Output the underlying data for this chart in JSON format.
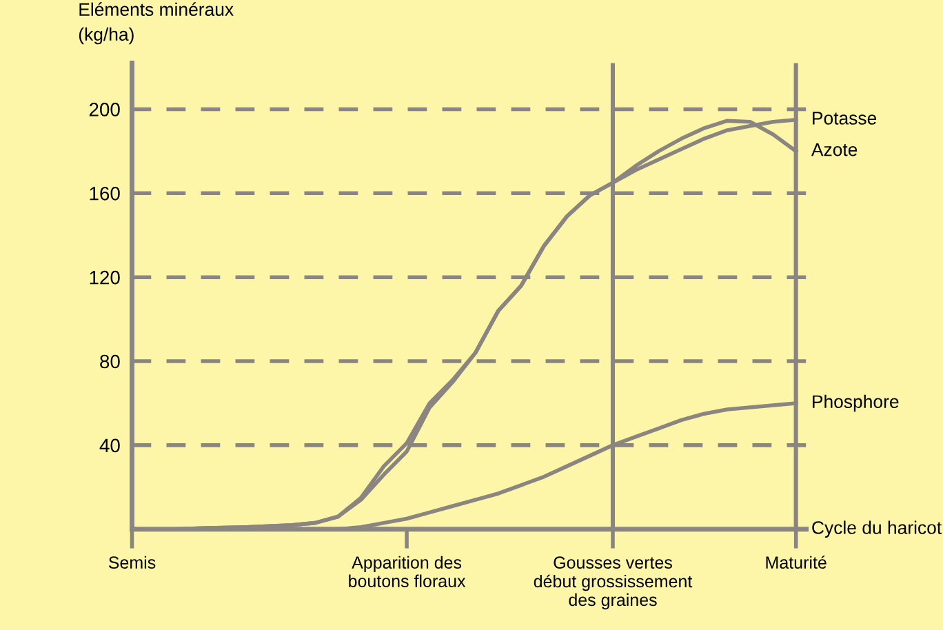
{
  "chart_data": {
    "type": "line",
    "ylabel": "Eléments minéraux\n(kg/ha)",
    "categories": [
      "Semis",
      null,
      null,
      null,
      null,
      null,
      null,
      null,
      null,
      null,
      null,
      null,
      "Apparition des\nboutons floraux",
      null,
      null,
      null,
      null,
      null,
      null,
      null,
      null,
      "Gousses vertes\ndébut grossissement\ndes graines",
      null,
      null,
      null,
      null,
      null,
      null,
      null,
      "Maturité"
    ],
    "ylim": [
      0,
      222
    ],
    "yticks": [
      40,
      80,
      120,
      160,
      200
    ],
    "grid": "y",
    "legend": false,
    "marker": "none",
    "line_style": "solid",
    "ref_lines": [
      {
        "axis": "x",
        "value": "Gousses vertes\ndébut grossissement\ndes graines",
        "color": "#8a8580"
      },
      {
        "axis": "x",
        "value": "Maturité",
        "color": "#8a8580"
      }
    ],
    "annotations": [
      "Cycle du haricot"
    ],
    "series": [
      {
        "name": "Potasse",
        "color": "#8a8580",
        "values": [
          0,
          0,
          0,
          0.5,
          0.7,
          1,
          1.5,
          2,
          3,
          6,
          14,
          26,
          37,
          58,
          70,
          84,
          104,
          116,
          135,
          149,
          159,
          165,
          171,
          176,
          181,
          186,
          190,
          192,
          194,
          195
        ]
      },
      {
        "name": "Azote",
        "color": "#8a8580",
        "values": [
          0,
          0,
          0,
          0.5,
          0.7,
          1,
          1.5,
          2,
          3,
          6,
          15,
          30,
          41,
          60,
          71,
          84,
          104,
          116,
          135,
          149,
          159,
          165,
          173,
          180,
          186,
          191,
          194.5,
          194,
          188,
          180
        ]
      },
      {
        "name": "Phosphore",
        "color": "#8a8580",
        "values": [
          0,
          0,
          0,
          0,
          0,
          0,
          0,
          0,
          0,
          0,
          1,
          3,
          5,
          8,
          11,
          14,
          17,
          21,
          25,
          30,
          35,
          40,
          44,
          48,
          52,
          55,
          57,
          58,
          59,
          60
        ]
      }
    ]
  }
}
